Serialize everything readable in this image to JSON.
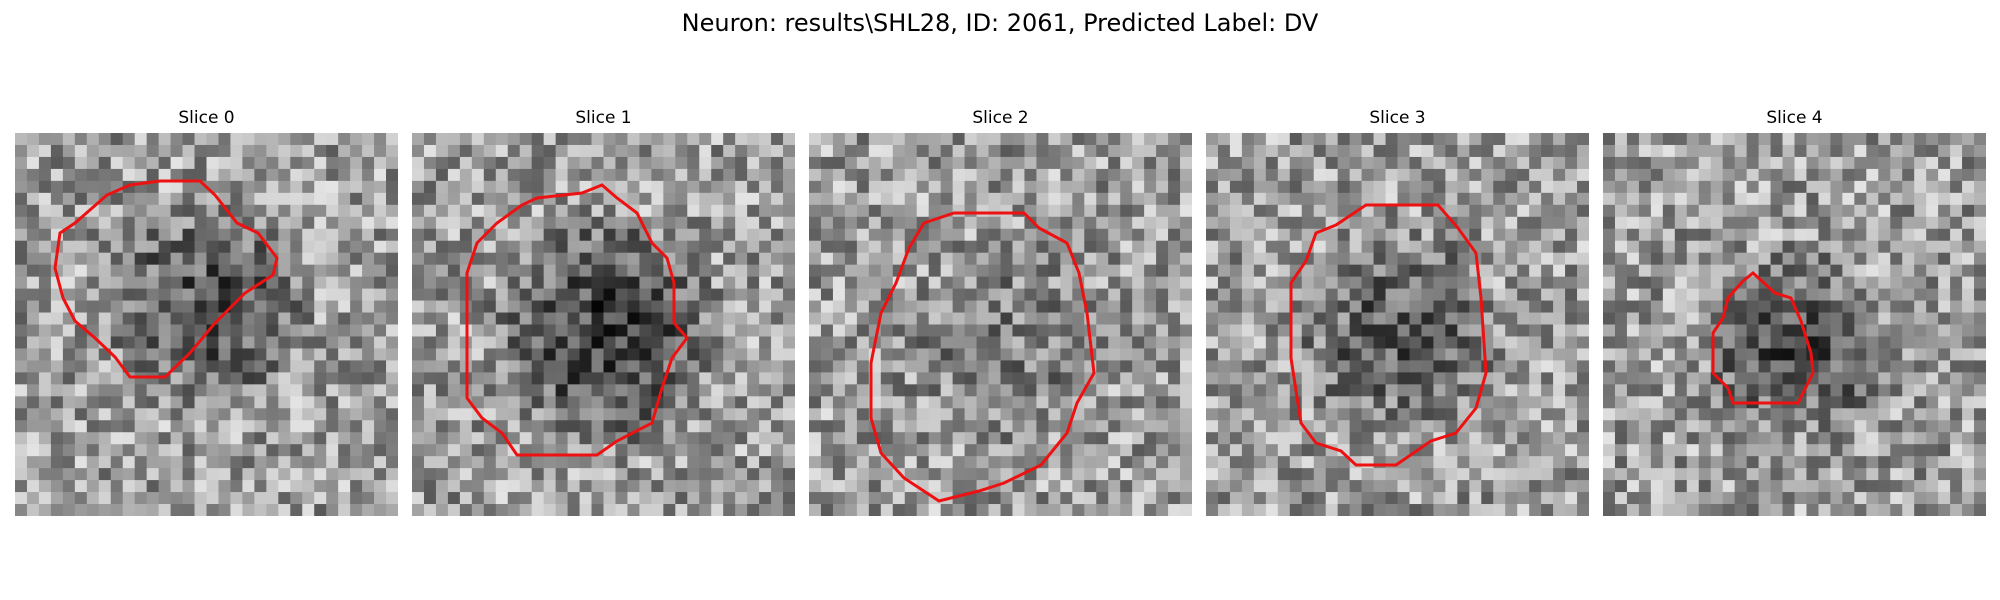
{
  "figure": {
    "title": "Neuron: results\\SHL28, ID: 2061, Predicted Label: DV"
  },
  "panels": [
    {
      "title": "Slice 0"
    },
    {
      "title": "Slice 1"
    },
    {
      "title": "Slice 2"
    },
    {
      "title": "Slice 3"
    },
    {
      "title": "Slice 4"
    }
  ],
  "colors": {
    "roi_outline": "#ee1111",
    "colormap": "gray",
    "background": "#ffffff"
  }
}
